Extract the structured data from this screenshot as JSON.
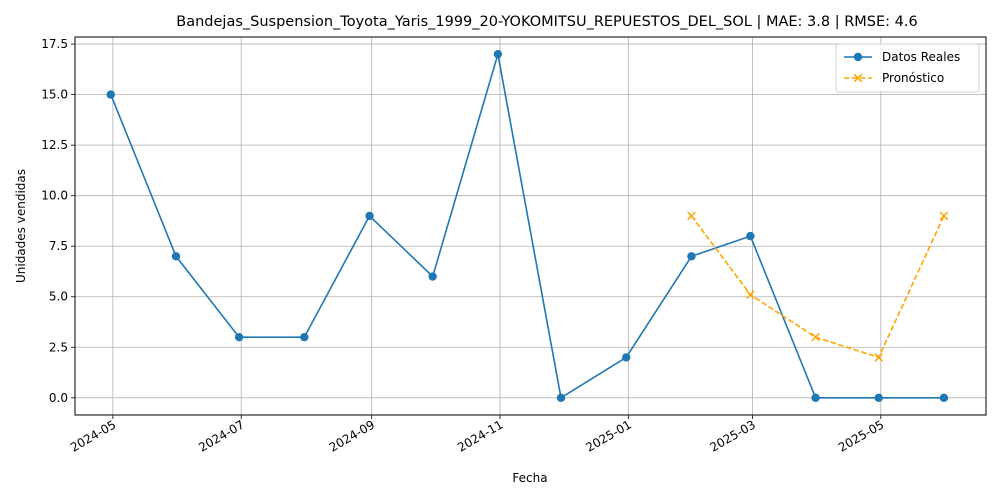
{
  "chart_data": {
    "type": "line",
    "title": "Bandejas_Suspension_Toyota_Yaris_1999_20-YOKOMITSU_REPUESTOS_DEL_SOL | MAE: 3.8 | RMSE: 4.6",
    "xlabel": "Fecha",
    "ylabel": "Unidades vendidas",
    "x_ticks": [
      "2024-05-01",
      "2024-07-01",
      "2024-09-01",
      "2024-11-01",
      "2025-01-01",
      "2025-03-01",
      "2025-05-01"
    ],
    "x_tick_labels": [
      "2024-05",
      "2024-07",
      "2024-09",
      "2024-11",
      "2025-01",
      "2025-03",
      "2025-05"
    ],
    "xlim": [
      "2024-04-13",
      "2025-06-20"
    ],
    "y_ticks": [
      0.0,
      2.5,
      5.0,
      7.5,
      10.0,
      12.5,
      15.0,
      17.5
    ],
    "y_tick_labels": [
      "0.0",
      "2.5",
      "5.0",
      "7.5",
      "10.0",
      "12.5",
      "15.0",
      "17.5"
    ],
    "ylim": [
      -0.85,
      17.85
    ],
    "grid": true,
    "legend_position": "top-right",
    "series": [
      {
        "name": "Datos Reales",
        "color": "#1f77b4",
        "style": "solid",
        "marker": "circle",
        "x": [
          "2024-04-30",
          "2024-05-31",
          "2024-06-30",
          "2024-07-31",
          "2024-08-31",
          "2024-09-30",
          "2024-10-31",
          "2024-11-30",
          "2024-12-31",
          "2025-01-31",
          "2025-02-28",
          "2025-03-31",
          "2025-04-30",
          "2025-05-31"
        ],
        "values": [
          15,
          7,
          3,
          3,
          9,
          6,
          17,
          0,
          2,
          7,
          8,
          0,
          0,
          0
        ]
      },
      {
        "name": "Pronóstico",
        "color": "#ffa500",
        "style": "dashed",
        "marker": "x",
        "x": [
          "2025-01-31",
          "2025-02-28",
          "2025-03-31",
          "2025-04-30",
          "2025-05-31"
        ],
        "values": [
          9,
          5.1,
          3,
          2,
          9
        ]
      }
    ]
  }
}
